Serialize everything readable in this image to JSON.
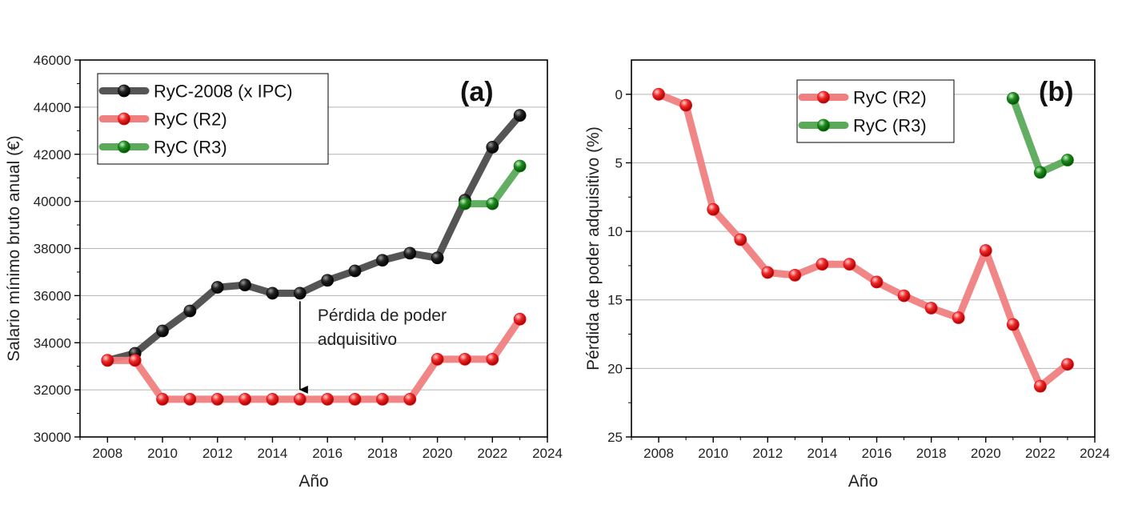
{
  "chart_data": [
    {
      "type": "line",
      "panel_label": "(a)",
      "xlabel": "Año",
      "ylabel": "Salario mínimo bruto anual (€)",
      "xlim": [
        2007,
        2024
      ],
      "ylim": [
        30000,
        46000
      ],
      "xticks": [
        "2008",
        "2010",
        "2012",
        "2014",
        "2016",
        "2018",
        "2020",
        "2022",
        "2024"
      ],
      "yticks": [
        "30000",
        "32000",
        "34000",
        "36000",
        "38000",
        "40000",
        "42000",
        "44000",
        "46000"
      ],
      "grid": true,
      "legend_position": "top-left",
      "annotation": {
        "lines": [
          "Pérdida de poder",
          "adquisitivo"
        ],
        "arrow_x": 2015,
        "arrow_from": 36100,
        "arrow_to": 31600
      },
      "series": [
        {
          "name": "RyC-2008 (x IPC)",
          "color": "#555555",
          "marker": "#111111",
          "x": [
            2008,
            2009,
            2010,
            2011,
            2012,
            2013,
            2014,
            2015,
            2016,
            2017,
            2018,
            2019,
            2020,
            2021,
            2022,
            2023
          ],
          "y": [
            33250,
            33550,
            34500,
            35350,
            36350,
            36450,
            36100,
            36100,
            36650,
            37050,
            37500,
            37800,
            37600,
            40050,
            42300,
            43650
          ]
        },
        {
          "name": "RyC (R2)",
          "color": "#f08080",
          "marker": "#e8141c",
          "x": [
            2008,
            2009,
            2010,
            2011,
            2012,
            2013,
            2014,
            2015,
            2016,
            2017,
            2018,
            2019,
            2020,
            2021,
            2022,
            2023
          ],
          "y": [
            33250,
            33250,
            31600,
            31600,
            31600,
            31600,
            31600,
            31600,
            31600,
            31600,
            31600,
            31600,
            33300,
            33300,
            33300,
            35000
          ]
        },
        {
          "name": "RyC (R3)",
          "color": "#5aaa5a",
          "marker": "#0f7a0f",
          "x": [
            2021,
            2022,
            2023
          ],
          "y": [
            39900,
            39900,
            41500
          ]
        }
      ]
    },
    {
      "type": "line",
      "panel_label": "(b)",
      "xlabel": "Año",
      "ylabel": "Pérdida de poder adquisitivo (%)",
      "xlim": [
        2007,
        2024
      ],
      "ylim": [
        -2.5,
        25
      ],
      "y_inverted": true,
      "xticks": [
        "2008",
        "2010",
        "2012",
        "2014",
        "2016",
        "2018",
        "2020",
        "2022",
        "2024"
      ],
      "yticks": [
        "0",
        "5",
        "10",
        "15",
        "20",
        "25"
      ],
      "grid": true,
      "legend_position": "top-center",
      "series": [
        {
          "name": "RyC (R2)",
          "color": "#f08080",
          "marker": "#e8141c",
          "x": [
            2008,
            2009,
            2010,
            2011,
            2012,
            2013,
            2014,
            2015,
            2016,
            2017,
            2018,
            2019,
            2020,
            2021,
            2022,
            2023
          ],
          "y": [
            0,
            0.8,
            8.4,
            10.6,
            13.0,
            13.2,
            12.4,
            12.4,
            13.7,
            14.7,
            15.6,
            16.3,
            11.4,
            16.8,
            21.3,
            19.7
          ]
        },
        {
          "name": "RyC (R3)",
          "color": "#5aaa5a",
          "marker": "#0f7a0f",
          "x": [
            2021,
            2022,
            2023
          ],
          "y": [
            0.3,
            5.7,
            4.8
          ]
        }
      ]
    }
  ]
}
